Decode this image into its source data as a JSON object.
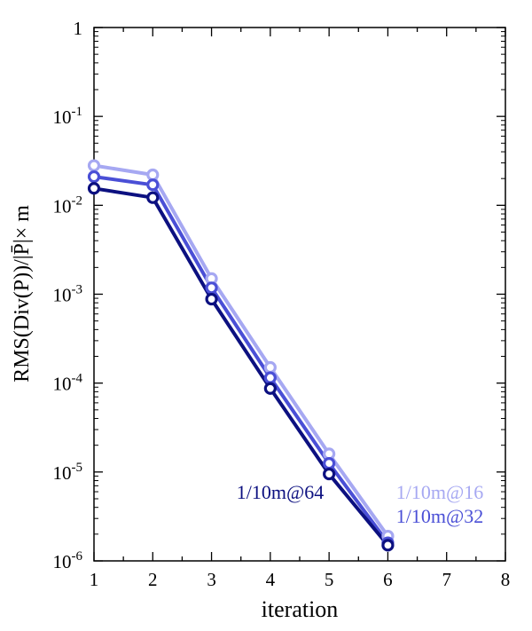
{
  "chart_data": {
    "type": "line",
    "title": "",
    "xlabel": "iteration",
    "ylabel": "RMS(Div(P))/|P̄|× m",
    "xlim": [
      1,
      8
    ],
    "ylim": [
      1e-06,
      1
    ],
    "yscale": "log",
    "grid": false,
    "x_ticks": [
      "1",
      "2",
      "3",
      "4",
      "5",
      "6",
      "7",
      "8"
    ],
    "y_ticks": [
      {
        "base": "1",
        "exp": ""
      },
      {
        "base": "10",
        "exp": "-1"
      },
      {
        "base": "10",
        "exp": "-2"
      },
      {
        "base": "10",
        "exp": "-3"
      },
      {
        "base": "10",
        "exp": "-4"
      },
      {
        "base": "10",
        "exp": "-5"
      },
      {
        "base": "10",
        "exp": "-6"
      }
    ],
    "x": [
      1,
      2,
      3,
      4,
      5,
      6
    ],
    "series": [
      {
        "name": "1/10m@16",
        "color": "#a6a8f2",
        "values": [
          0.028,
          0.022,
          0.0015,
          0.00015,
          1.6e-05,
          1.9e-06
        ]
      },
      {
        "name": "1/10m@32",
        "color": "#4a4fd6",
        "values": [
          0.021,
          0.017,
          0.00118,
          0.000115,
          1.25e-05,
          1.6e-06
        ]
      },
      {
        "name": "1/10m@64",
        "color": "#0c1080",
        "values": [
          0.0155,
          0.0122,
          0.00088,
          8.7e-05,
          9.5e-06,
          1.5e-06
        ]
      }
    ]
  }
}
